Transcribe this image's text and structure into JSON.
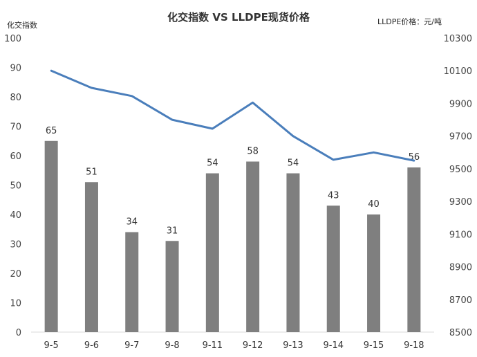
{
  "chart_data": {
    "type": "bar",
    "title": "化交指数 VS LLDPE现货价格",
    "ylabel": "化交指数",
    "y2label": "LLDPE价格：元/吨",
    "categories": [
      "9-5",
      "9-6",
      "9-7",
      "9-8",
      "9-11",
      "9-12",
      "9-13",
      "9-14",
      "9-15",
      "9-18"
    ],
    "ylim": [
      0,
      100
    ],
    "y_ticks": [
      "0",
      "10",
      "20",
      "30",
      "40",
      "50",
      "60",
      "70",
      "80",
      "90",
      "100"
    ],
    "y2lim": [
      8500,
      10300
    ],
    "y2_ticks": [
      "8500",
      "8700",
      "8900",
      "9100",
      "9300",
      "9500",
      "9700",
      "9900",
      "10100",
      "10300"
    ],
    "grid": false,
    "series": [
      {
        "type": "bar",
        "axis": "left",
        "values": [
          65,
          51,
          34,
          31,
          54,
          58,
          54,
          43,
          40,
          56
        ],
        "color": "#7f7f7f"
      },
      {
        "type": "line",
        "axis": "right",
        "values": [
          10100,
          9995,
          9945,
          9800,
          9745,
          9905,
          9700,
          9555,
          9600,
          9550
        ],
        "color": "#4a7ebb"
      }
    ]
  }
}
